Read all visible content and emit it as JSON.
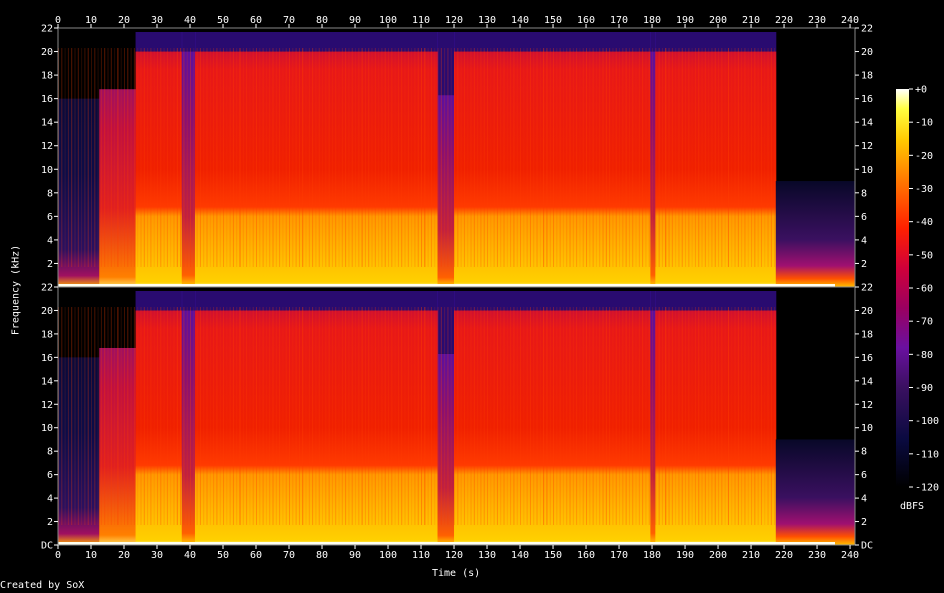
{
  "app": {
    "credit": "Created by SoX"
  },
  "chart_data": {
    "type": "heatmap",
    "x_label": "Time (s)",
    "y_label": "Frequency (kHz)",
    "x_ticks": [
      0,
      10,
      20,
      30,
      40,
      50,
      60,
      70,
      80,
      90,
      100,
      110,
      120,
      130,
      140,
      150,
      160,
      170,
      180,
      190,
      200,
      210,
      220,
      230,
      240
    ],
    "x_range": [
      0,
      241.5
    ],
    "y_range_khz": [
      0,
      22
    ],
    "y_ticks_khz": [
      0,
      2,
      4,
      6,
      8,
      10,
      12,
      14,
      16,
      18,
      20,
      22
    ],
    "y_tick_labels": [
      "DC",
      "2",
      "4",
      "6",
      "8",
      "10",
      "12",
      "14",
      "16",
      "18",
      "20",
      "22"
    ],
    "channels": 2,
    "colorbar": {
      "label": "dBFS",
      "ticks": [
        0,
        -10,
        -20,
        -30,
        -40,
        -50,
        -60,
        -70,
        -80,
        -90,
        -100,
        -110,
        -120
      ],
      "tick_labels": [
        "+0",
        "-10",
        "-20",
        "-30",
        "-40",
        "-50",
        "-60",
        "-70",
        "-80",
        "-90",
        "-100",
        "-110",
        "-120"
      ],
      "range_db": [
        -120,
        0
      ],
      "colormap": [
        "#ffffff",
        "#ffff40",
        "#ffc800",
        "#ff7800",
        "#ff2000",
        "#d0003a",
        "#9a0060",
        "#6a10a0",
        "#3a1060",
        "#0a0a40",
        "#000000"
      ]
    },
    "segments": [
      {
        "t0": 0,
        "t1": 12.5,
        "cutoff_khz": 16,
        "level": "quiet"
      },
      {
        "t0": 12.5,
        "t1": 23.5,
        "cutoff_khz": 16.8,
        "level": "moderate"
      },
      {
        "t0": 23.5,
        "t1": 37.5,
        "cutoff_khz": 20,
        "level": "loud"
      },
      {
        "t0": 37.5,
        "t1": 41.5,
        "cutoff_khz": 20,
        "level": "dip"
      },
      {
        "t0": 41.5,
        "t1": 115,
        "cutoff_khz": 20,
        "level": "loud"
      },
      {
        "t0": 115,
        "t1": 120,
        "cutoff_khz": 16.3,
        "level": "dip"
      },
      {
        "t0": 120,
        "t1": 179.5,
        "cutoff_khz": 20,
        "level": "loud"
      },
      {
        "t0": 179.5,
        "t1": 181,
        "cutoff_khz": 20,
        "level": "dip"
      },
      {
        "t0": 181,
        "t1": 217.5,
        "cutoff_khz": 20,
        "level": "loud"
      },
      {
        "t0": 217.5,
        "t1": 241.5,
        "cutoff_khz": 9,
        "level": "fade"
      }
    ]
  }
}
